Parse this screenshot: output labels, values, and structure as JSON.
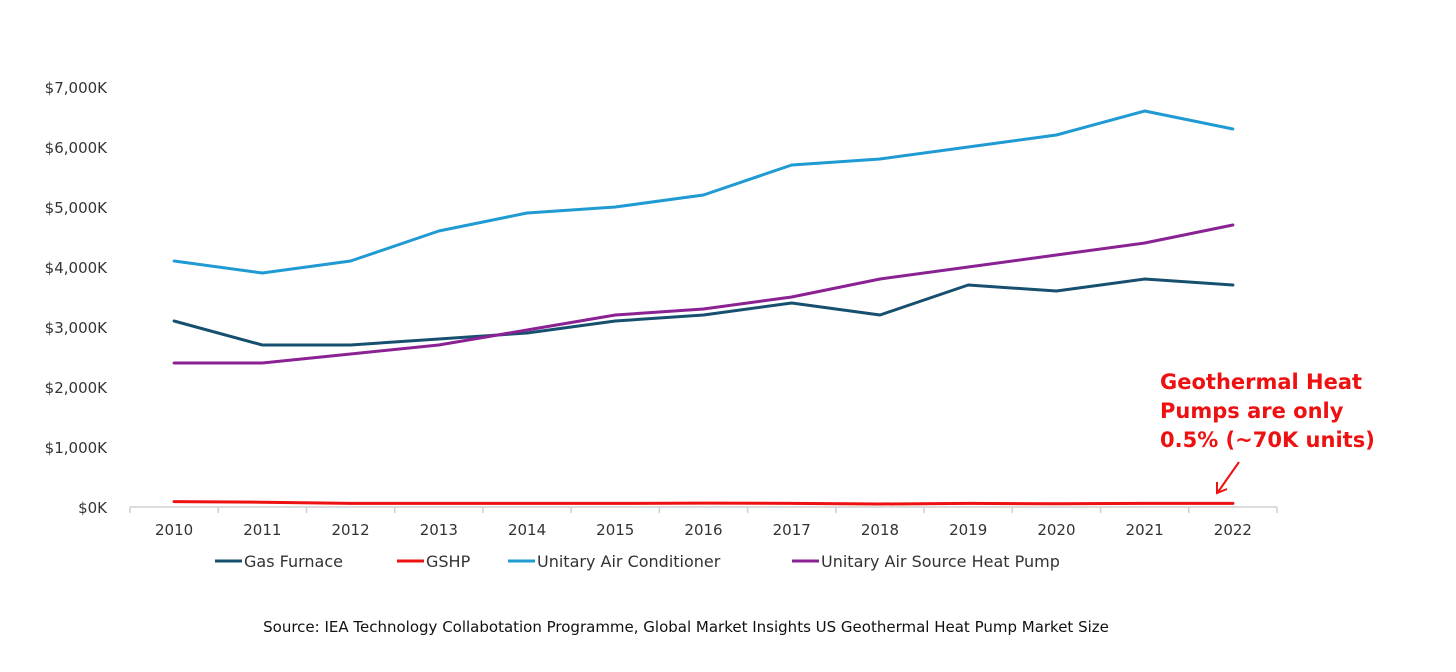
{
  "chart_data": {
    "type": "line",
    "title": "",
    "xlabel": "",
    "ylabel": "",
    "categories": [
      "2010",
      "2011",
      "2012",
      "2013",
      "2014",
      "2015",
      "2016",
      "2017",
      "2018",
      "2019",
      "2020",
      "2021",
      "2022"
    ],
    "ylim": [
      0,
      7000
    ],
    "yticks": [
      0,
      1000,
      2000,
      3000,
      4000,
      5000,
      6000,
      7000
    ],
    "ytick_labels": [
      "$0K",
      "$1,000K",
      "$2,000K",
      "$3,000K",
      "$4,000K",
      "$5,000K",
      "$6,000K",
      "$7,000K"
    ],
    "grid": false,
    "legend_position": "bottom",
    "series": [
      {
        "name": "Gas Furnace",
        "color": "#17506e",
        "values": [
          3100,
          2700,
          2700,
          2800,
          2900,
          3100,
          3200,
          3400,
          3200,
          3700,
          3600,
          3800,
          3700
        ]
      },
      {
        "name": "GSHP",
        "color": "#ee1111",
        "values": [
          90,
          80,
          60,
          60,
          60,
          60,
          65,
          60,
          50,
          60,
          55,
          60,
          60
        ]
      },
      {
        "name": "Unitary Air Conditioner",
        "color": "#1f9ad3",
        "values": [
          4100,
          3900,
          4100,
          4600,
          4900,
          5000,
          5200,
          5700,
          5800,
          6000,
          6200,
          6600,
          6300
        ]
      },
      {
        "name": "Unitary Air Source Heat Pump",
        "color": "#8b2293",
        "values": [
          2400,
          2400,
          2550,
          2700,
          2950,
          3200,
          3300,
          3500,
          3800,
          4000,
          4200,
          4400,
          4700
        ]
      }
    ],
    "annotation": {
      "lines": [
        "Geothermal Heat",
        "Pumps are only",
        "0.5% (~70K units)"
      ],
      "target_series": "GSHP",
      "target_category": "2022"
    },
    "source": "Source: IEA Technology Collabotation Programme, Global Market Insights US Geothermal Heat Pump Market Size"
  }
}
